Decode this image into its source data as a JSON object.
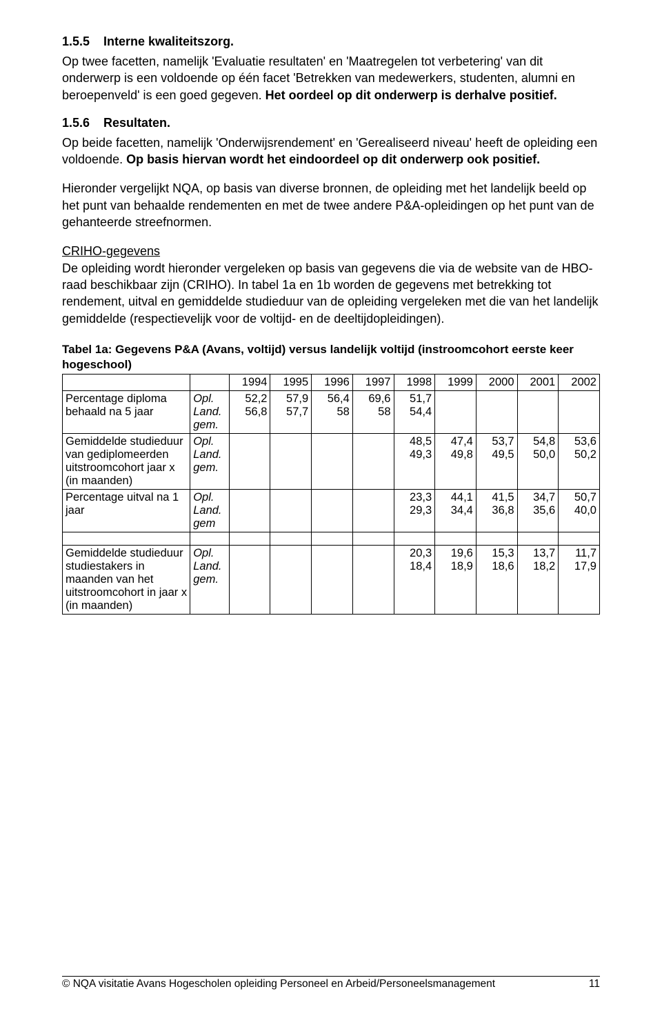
{
  "sections": {
    "s155": {
      "num": "1.5.5",
      "title": "Interne kwaliteitszorg."
    },
    "s155_para_prefix": "Op twee facetten, namelijk 'Evaluatie resultaten' en 'Maatregelen tot verbetering' van dit onderwerp is een voldoende op één facet 'Betrekken van medewerkers, studenten, alumni en beroepenveld' is een goed gegeven. ",
    "s155_para_bold": "Het oordeel op dit onderwerp is derhalve positief.",
    "s156": {
      "num": "1.5.6",
      "title": "Resultaten."
    },
    "s156_para_prefix": "Op beide facetten, namelijk 'Onderwijsrendement' en 'Gerealiseerd niveau' heeft de opleiding een voldoende. ",
    "s156_para_bold": "Op basis hiervan wordt het eindoordeel op dit onderwerp ook positief.",
    "para3": "Hieronder vergelijkt NQA, op basis van diverse bronnen, de opleiding met het landelijk beeld op het punt van behaalde rendementen en met de twee andere P&A-opleidingen op het punt van de gehanteerde streefnormen.",
    "criho_heading": "CRIHO-gegevens",
    "criho_para": "De opleiding wordt hieronder vergeleken op basis van gegevens die via de website van de HBO-raad beschikbaar zijn (CRIHO). In tabel 1a en 1b worden de gegevens met betrekking tot rendement, uitval en gemiddelde studieduur van de opleiding vergeleken met die van het landelijk gemiddelde (respectievelijk voor de voltijd- en de deeltijdopleidingen).",
    "table_caption": "Tabel 1a: Gegevens P&A (Avans, voltijd) versus landelijk voltijd (instroomcohort eerste keer hogeschool)"
  },
  "table": {
    "years": [
      "1994",
      "1995",
      "1996",
      "1997",
      "1998",
      "1999",
      "2000",
      "2001",
      "2002"
    ],
    "src_labels": {
      "opl": "Opl.",
      "land_gem": "Land. gem.",
      "land_gem_short": "Land. gem"
    },
    "rows": [
      {
        "label": "Percentage diploma behaald na 5 jaar",
        "opl": [
          "52,2",
          "57,9",
          "56,4",
          "69,6",
          "51,7",
          "",
          "",
          "",
          ""
        ],
        "land": [
          "56,8",
          "57,7",
          "58",
          "58",
          "54,4",
          "",
          "",
          "",
          ""
        ],
        "land_src": "land_gem"
      },
      {
        "label": "Gemiddelde studieduur van gediplomeerden uitstroomcohort jaar x (in maanden)",
        "opl": [
          "",
          "",
          "",
          "",
          "48,5",
          "47,4",
          "53,7",
          "54,8",
          "53,6"
        ],
        "land": [
          "",
          "",
          "",
          "",
          "49,3",
          "49,8",
          "49,5",
          "50,0",
          "50,2"
        ],
        "land_src": "land_gem"
      },
      {
        "label": "Percentage uitval na 1 jaar",
        "opl": [
          "",
          "",
          "",
          "",
          "23,3",
          "44,1",
          "41,5",
          "34,7",
          "50,7"
        ],
        "land": [
          "",
          "",
          "",
          "",
          "29,3",
          "34,4",
          "36,8",
          "35,6",
          "40,0"
        ],
        "land_src": "land_gem_short"
      }
    ],
    "row2": {
      "label": "Gemiddelde studieduur studiestakers in maanden van het uitstroomcohort in jaar x (in maanden)",
      "opl": [
        "",
        "",
        "",
        "",
        "20,3",
        "19,6",
        "15,3",
        "13,7",
        "11,7"
      ],
      "land": [
        "",
        "",
        "",
        "",
        "18,4",
        "18,9",
        "18,6",
        "18,2",
        "17,9"
      ],
      "land_src": "land_gem"
    }
  },
  "footer": {
    "text": "© NQA visitatie Avans Hogescholen opleiding Personeel en Arbeid/Personeelsmanagement",
    "page": "11"
  }
}
